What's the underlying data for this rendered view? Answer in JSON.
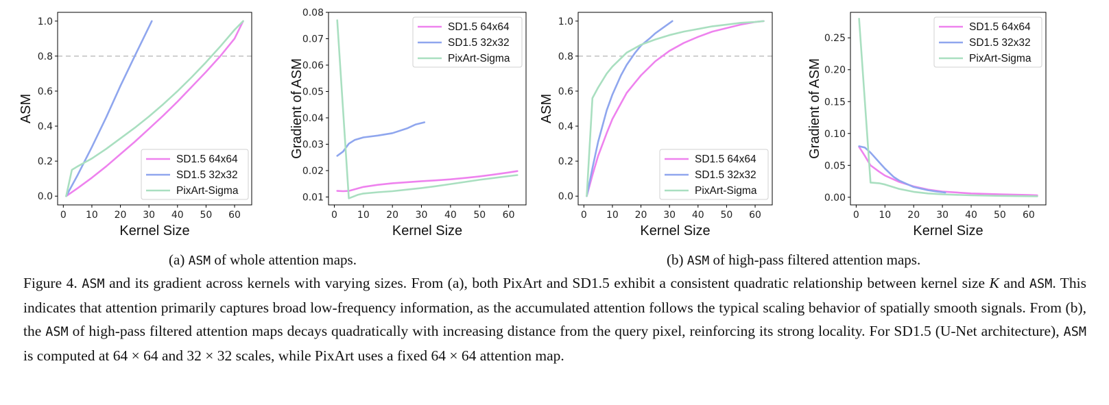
{
  "chart_data": [
    {
      "type": "line",
      "xlabel": "Kernel Size",
      "ylabel": "ASM",
      "xlim": [
        -2,
        66
      ],
      "ylim": [
        -0.05,
        1.05
      ],
      "xticks": [
        0,
        10,
        20,
        30,
        40,
        50,
        60
      ],
      "yticks": [
        0.0,
        0.2,
        0.4,
        0.6,
        0.8,
        1.0
      ],
      "ytick_labels": [
        "0.0",
        "0.2",
        "0.4",
        "0.6",
        "0.8",
        "1.0"
      ],
      "hline": 0.8,
      "legend": "lower-right",
      "series": [
        {
          "name": "SD1.5 64x64",
          "color": "#ee82ee",
          "x": [
            1,
            5,
            10,
            15,
            20,
            25,
            30,
            35,
            40,
            45,
            50,
            55,
            60,
            63
          ],
          "y": [
            0.0,
            0.045,
            0.105,
            0.17,
            0.24,
            0.31,
            0.385,
            0.46,
            0.54,
            0.625,
            0.71,
            0.8,
            0.9,
            1.0
          ]
        },
        {
          "name": "SD1.5 32x32",
          "color": "#8fa6ee",
          "x": [
            1,
            5,
            10,
            15,
            20,
            25,
            28,
            31
          ],
          "y": [
            0.0,
            0.12,
            0.28,
            0.45,
            0.63,
            0.8,
            0.9,
            1.0
          ]
        },
        {
          "name": "PixArt-Sigma",
          "color": "#a9dfc0",
          "x": [
            1,
            3,
            5,
            10,
            15,
            20,
            25,
            30,
            35,
            40,
            45,
            50,
            55,
            60,
            63
          ],
          "y": [
            0.0,
            0.15,
            0.17,
            0.215,
            0.27,
            0.33,
            0.39,
            0.455,
            0.525,
            0.6,
            0.68,
            0.765,
            0.855,
            0.95,
            1.0
          ]
        }
      ]
    },
    {
      "type": "line",
      "xlabel": "Kernel Size",
      "ylabel": "Gradient of ASM",
      "xlim": [
        -2,
        66
      ],
      "ylim": [
        0.007,
        0.08
      ],
      "xticks": [
        0,
        10,
        20,
        30,
        40,
        50,
        60
      ],
      "yticks": [
        0.01,
        0.02,
        0.03,
        0.04,
        0.05,
        0.06,
        0.07,
        0.08
      ],
      "ytick_labels": [
        "0.01",
        "0.02",
        "0.03",
        "0.04",
        "0.05",
        "0.06",
        "0.07",
        "0.08"
      ],
      "legend": "upper-right",
      "series": [
        {
          "name": "SD1.5 64x64",
          "color": "#ee82ee",
          "x": [
            1,
            3,
            5,
            10,
            15,
            20,
            25,
            30,
            35,
            40,
            45,
            50,
            55,
            60,
            63
          ],
          "y": [
            0.0123,
            0.0122,
            0.0123,
            0.0138,
            0.0146,
            0.0152,
            0.0156,
            0.016,
            0.0163,
            0.0167,
            0.0172,
            0.0178,
            0.0185,
            0.0193,
            0.0198
          ]
        },
        {
          "name": "SD1.5 32x32",
          "color": "#8fa6ee",
          "x": [
            1,
            3,
            5,
            7,
            10,
            15,
            20,
            25,
            28,
            31
          ],
          "y": [
            0.0256,
            0.0272,
            0.0302,
            0.0316,
            0.0326,
            0.0333,
            0.0342,
            0.036,
            0.0375,
            0.0383
          ]
        },
        {
          "name": "PixArt-Sigma",
          "color": "#a9dfc0",
          "x": [
            1,
            5,
            8,
            10,
            15,
            20,
            25,
            30,
            35,
            40,
            45,
            50,
            55,
            60,
            63
          ],
          "y": [
            0.077,
            0.0095,
            0.0108,
            0.0113,
            0.0118,
            0.0122,
            0.0128,
            0.0134,
            0.0141,
            0.0149,
            0.0157,
            0.0165,
            0.0172,
            0.0179,
            0.0183
          ]
        }
      ]
    },
    {
      "type": "line",
      "xlabel": "Kernel Size",
      "ylabel": "ASM",
      "xlim": [
        -2,
        66
      ],
      "ylim": [
        -0.05,
        1.05
      ],
      "xticks": [
        0,
        10,
        20,
        30,
        40,
        50,
        60
      ],
      "yticks": [
        0.0,
        0.2,
        0.4,
        0.6,
        0.8,
        1.0
      ],
      "ytick_labels": [
        "0.0",
        "0.2",
        "0.4",
        "0.6",
        "0.8",
        "1.0"
      ],
      "hline": 0.8,
      "legend": "lower-right",
      "series": [
        {
          "name": "SD1.5 64x64",
          "color": "#ee82ee",
          "x": [
            1,
            3,
            5,
            8,
            10,
            13,
            15,
            18,
            20,
            25,
            30,
            35,
            40,
            45,
            50,
            55,
            60,
            63
          ],
          "y": [
            0.0,
            0.12,
            0.23,
            0.36,
            0.44,
            0.53,
            0.59,
            0.65,
            0.69,
            0.77,
            0.83,
            0.875,
            0.91,
            0.94,
            0.96,
            0.98,
            0.995,
            1.0
          ]
        },
        {
          "name": "SD1.5 32x32",
          "color": "#8fa6ee",
          "x": [
            1,
            3,
            5,
            8,
            10,
            13,
            15,
            18,
            20,
            23,
            25,
            28,
            31
          ],
          "y": [
            0.0,
            0.16,
            0.31,
            0.49,
            0.58,
            0.69,
            0.75,
            0.82,
            0.86,
            0.9,
            0.93,
            0.965,
            1.0
          ]
        },
        {
          "name": "PixArt-Sigma",
          "color": "#a9dfc0",
          "x": [
            1,
            3,
            5,
            8,
            10,
            15,
            20,
            25,
            30,
            35,
            40,
            45,
            50,
            55,
            60,
            63
          ],
          "y": [
            0.0,
            0.56,
            0.62,
            0.7,
            0.74,
            0.82,
            0.865,
            0.895,
            0.92,
            0.94,
            0.955,
            0.97,
            0.98,
            0.99,
            0.995,
            1.0
          ]
        }
      ]
    },
    {
      "type": "line",
      "xlabel": "Kernel Size",
      "ylabel": "Gradient of ASM",
      "xlim": [
        -2,
        66
      ],
      "ylim": [
        -0.012,
        0.29
      ],
      "xticks": [
        0,
        10,
        20,
        30,
        40,
        50,
        60
      ],
      "yticks": [
        0.0,
        0.05,
        0.1,
        0.15,
        0.2,
        0.25
      ],
      "ytick_labels": [
        "0.00",
        "0.05",
        "0.10",
        "0.15",
        "0.20",
        "0.25"
      ],
      "legend": "upper-right",
      "series": [
        {
          "name": "SD1.5 64x64",
          "color": "#ee82ee",
          "x": [
            1,
            3,
            5,
            8,
            10,
            15,
            20,
            25,
            30,
            40,
            50,
            60,
            63
          ],
          "y": [
            0.079,
            0.065,
            0.05,
            0.04,
            0.034,
            0.024,
            0.017,
            0.012,
            0.009,
            0.006,
            0.0045,
            0.0035,
            0.003
          ]
        },
        {
          "name": "SD1.5 32x32",
          "color": "#8fa6ee",
          "x": [
            1,
            3,
            5,
            8,
            10,
            13,
            15,
            18,
            20,
            25,
            28,
            31
          ],
          "y": [
            0.08,
            0.078,
            0.07,
            0.055,
            0.045,
            0.032,
            0.026,
            0.02,
            0.016,
            0.011,
            0.009,
            0.0075
          ]
        },
        {
          "name": "PixArt-Sigma",
          "color": "#a9dfc0",
          "x": [
            1,
            5,
            8,
            10,
            15,
            20,
            25,
            30,
            40,
            50,
            60,
            63
          ],
          "y": [
            0.28,
            0.023,
            0.022,
            0.02,
            0.013,
            0.0085,
            0.006,
            0.0045,
            0.003,
            0.0022,
            0.0017,
            0.0015
          ]
        }
      ]
    }
  ],
  "subcaptions": {
    "a": {
      "label": "(a)",
      "code": "ASM",
      "text": "of whole attention maps."
    },
    "b": {
      "label": "(b)",
      "code": "ASM",
      "text": "of high-pass filtered attention maps."
    }
  },
  "caption": {
    "t1": "Figure 4. ",
    "c1": "ASM",
    "t2": " and its gradient across kernels with varying sizes. From (a), both PixArt and SD1.5 exhibit a consistent quadratic relationship between kernel size ",
    "k": "K",
    "t3": " and ",
    "c2": "ASM",
    "t4": ". This indicates that attention primarily captures broad low-frequency information, as the accumulated attention follows the typical scaling behavior of spatially smooth signals. From (b), the ",
    "c3": "ASM",
    "t5": " of high-pass filtered attention maps decays quadratically with increasing distance from the query pixel, reinforcing its strong locality. For SD1.5 (U-Net architecture), ",
    "c4": "ASM",
    "t6": " is computed at 64 × 64 and 32 × 32 scales, while PixArt uses a fixed 64 × 64 attention map."
  }
}
